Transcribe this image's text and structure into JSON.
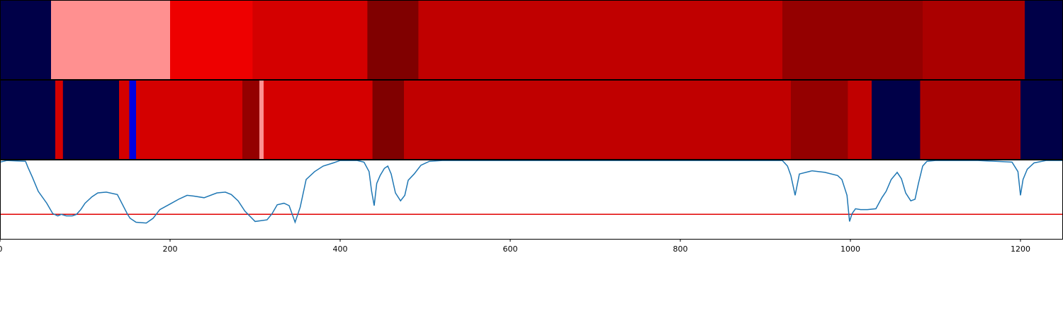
{
  "chart_data": [
    {
      "type": "heatmap",
      "panel": "top",
      "xlim": [
        0,
        1250
      ],
      "segments": [
        {
          "start": 0,
          "end": 60,
          "color": "#000048"
        },
        {
          "start": 60,
          "end": 200,
          "color": "#ff9090"
        },
        {
          "start": 200,
          "end": 297,
          "color": "#ee0000"
        },
        {
          "start": 297,
          "end": 432,
          "color": "#d40000"
        },
        {
          "start": 432,
          "end": 492,
          "color": "#800000"
        },
        {
          "start": 492,
          "end": 920,
          "color": "#c00000"
        },
        {
          "start": 920,
          "end": 1085,
          "color": "#940000"
        },
        {
          "start": 1085,
          "end": 1205,
          "color": "#aa0000"
        },
        {
          "start": 1205,
          "end": 1250,
          "color": "#000048"
        }
      ]
    },
    {
      "type": "heatmap",
      "panel": "middle",
      "xlim": [
        0,
        1250
      ],
      "segments": [
        {
          "start": 0,
          "end": 65,
          "color": "#000048"
        },
        {
          "start": 65,
          "end": 74,
          "color": "#d40000"
        },
        {
          "start": 74,
          "end": 140,
          "color": "#000048"
        },
        {
          "start": 140,
          "end": 152,
          "color": "#d40000"
        },
        {
          "start": 152,
          "end": 160,
          "color": "#0000e0"
        },
        {
          "start": 160,
          "end": 285,
          "color": "#d40000"
        },
        {
          "start": 285,
          "end": 305,
          "color": "#940000"
        },
        {
          "start": 305,
          "end": 310,
          "color": "#ff9090"
        },
        {
          "start": 310,
          "end": 438,
          "color": "#d40000"
        },
        {
          "start": 438,
          "end": 475,
          "color": "#800000"
        },
        {
          "start": 475,
          "end": 930,
          "color": "#c00000"
        },
        {
          "start": 930,
          "end": 997,
          "color": "#940000"
        },
        {
          "start": 997,
          "end": 1025,
          "color": "#c00000"
        },
        {
          "start": 1025,
          "end": 1082,
          "color": "#000048"
        },
        {
          "start": 1082,
          "end": 1200,
          "color": "#aa0000"
        },
        {
          "start": 1200,
          "end": 1250,
          "color": "#000048"
        }
      ]
    },
    {
      "type": "line",
      "panel": "bottom",
      "xlim": [
        0,
        1250
      ],
      "ylim": [
        0,
        1
      ],
      "xticks": [
        0,
        200,
        400,
        600,
        800,
        1000,
        1200
      ],
      "line_color": "#1f77b4",
      "threshold": {
        "y": 0.31,
        "color": "#e00000"
      },
      "series": [
        {
          "x": [
            0,
            8,
            30,
            33,
            38,
            45,
            55,
            62,
            68,
            72,
            78,
            85,
            90,
            95,
            100,
            108,
            115,
            125,
            138,
            150,
            153,
            160,
            172,
            180,
            188,
            200,
            210,
            220,
            228,
            240,
            255,
            265,
            272,
            280,
            288,
            300,
            314,
            320,
            326,
            334,
            340,
            347,
            353,
            360,
            370,
            380,
            392,
            400,
            420,
            428,
            434,
            437,
            440,
            443,
            447,
            452,
            456,
            460,
            465,
            471,
            476,
            480,
            487,
            495,
            505,
            520,
            600,
            700,
            800,
            900,
            920,
            926,
            930,
            935,
            940,
            955,
            970,
            985,
            990,
            993,
            996,
            999,
            1002,
            1006,
            1012,
            1020,
            1030,
            1037,
            1042,
            1048,
            1055,
            1060,
            1065,
            1071,
            1076,
            1080,
            1085,
            1090,
            1100,
            1150,
            1190,
            1197,
            1200,
            1203,
            1208,
            1216,
            1230,
            1250
          ],
          "y": [
            0.97,
            0.99,
            0.98,
            0.9,
            0.78,
            0.6,
            0.45,
            0.32,
            0.29,
            0.31,
            0.29,
            0.29,
            0.31,
            0.37,
            0.45,
            0.53,
            0.58,
            0.59,
            0.56,
            0.31,
            0.26,
            0.21,
            0.2,
            0.26,
            0.37,
            0.44,
            0.5,
            0.55,
            0.54,
            0.52,
            0.58,
            0.59,
            0.56,
            0.48,
            0.35,
            0.22,
            0.24,
            0.32,
            0.43,
            0.45,
            0.42,
            0.21,
            0.4,
            0.75,
            0.85,
            0.92,
            0.96,
            0.99,
            0.99,
            0.97,
            0.85,
            0.6,
            0.42,
            0.7,
            0.8,
            0.89,
            0.92,
            0.82,
            0.58,
            0.48,
            0.55,
            0.74,
            0.82,
            0.93,
            0.98,
            0.99,
            0.99,
            0.99,
            0.99,
            0.99,
            0.99,
            0.92,
            0.8,
            0.55,
            0.82,
            0.86,
            0.84,
            0.8,
            0.75,
            0.65,
            0.55,
            0.22,
            0.32,
            0.38,
            0.37,
            0.37,
            0.38,
            0.52,
            0.6,
            0.75,
            0.84,
            0.76,
            0.58,
            0.48,
            0.5,
            0.7,
            0.92,
            0.98,
            0.99,
            0.99,
            0.97,
            0.85,
            0.55,
            0.75,
            0.88,
            0.96,
            0.99,
            0.99
          ]
        }
      ]
    }
  ]
}
